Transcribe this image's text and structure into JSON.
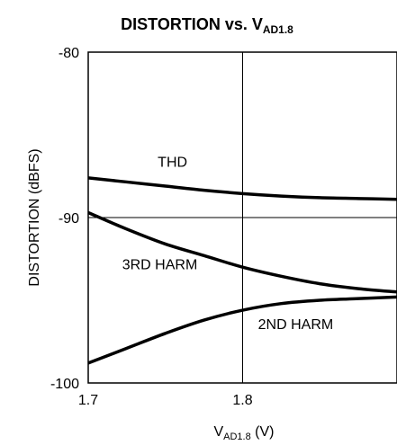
{
  "chart_data": {
    "type": "line",
    "title": {
      "main": "DISTORTION vs. V",
      "sub": "AD1.8"
    },
    "xlabel": {
      "main": "V",
      "sub": "AD1.8",
      "unit": " (V)"
    },
    "ylabel": "DISTORTION (dBFS)",
    "xlim": [
      1.7,
      1.9
    ],
    "ylim": [
      -100,
      -80
    ],
    "x_ticks": [
      1.7,
      1.8
    ],
    "x_tick_labels": [
      "1.7",
      "1.8"
    ],
    "y_ticks": [
      -80,
      -90,
      -100
    ],
    "y_tick_labels": [
      "-80",
      "-90",
      "-100"
    ],
    "grid": true,
    "series": [
      {
        "name": "THD",
        "x": [
          1.7,
          1.725,
          1.75,
          1.775,
          1.8,
          1.825,
          1.85,
          1.875,
          1.9
        ],
        "y": [
          -87.6,
          -87.85,
          -88.1,
          -88.35,
          -88.55,
          -88.7,
          -88.8,
          -88.85,
          -88.9
        ],
        "label_at": [
          1.745,
          -86.6
        ]
      },
      {
        "name": "3RD HARM",
        "x": [
          1.7,
          1.725,
          1.75,
          1.775,
          1.8,
          1.825,
          1.85,
          1.875,
          1.9
        ],
        "y": [
          -89.7,
          -90.7,
          -91.6,
          -92.3,
          -93.0,
          -93.55,
          -94.0,
          -94.3,
          -94.5
        ],
        "label_at": [
          1.722,
          -92.8
        ]
      },
      {
        "name": "2ND HARM",
        "x": [
          1.7,
          1.725,
          1.75,
          1.775,
          1.8,
          1.825,
          1.85,
          1.875,
          1.9
        ],
        "y": [
          -98.8,
          -97.9,
          -97.0,
          -96.2,
          -95.6,
          -95.2,
          -95.0,
          -94.9,
          -94.8
        ],
        "label_at": [
          1.81,
          -96.4
        ]
      }
    ]
  }
}
